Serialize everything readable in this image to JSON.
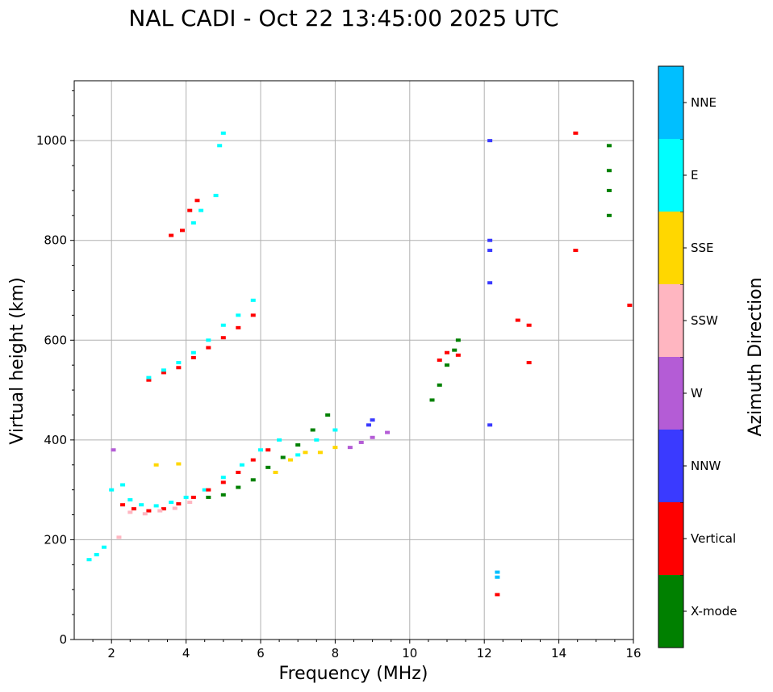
{
  "chart_data": {
    "type": "scatter",
    "title": "NAL CADI - Oct 22 13:45:00 2025 UTC",
    "xlabel": "Frequency (MHz)",
    "ylabel": "Virtual height (km)",
    "colorbar_label": "Azimuth Direction",
    "xlim": [
      1,
      16
    ],
    "ylim": [
      0,
      1120
    ],
    "xticks": [
      2,
      4,
      6,
      8,
      10,
      12,
      14,
      16
    ],
    "yticks": [
      0,
      200,
      400,
      600,
      800,
      1000
    ],
    "grid": true,
    "categories": [
      "X-mode",
      "Vertical",
      "NNW",
      "W",
      "SSW",
      "SSE",
      "E",
      "NNE"
    ],
    "colors": {
      "X-mode": "#008000",
      "Vertical": "#ff0000",
      "NNW": "#3a3aff",
      "W": "#b45cd6",
      "SSW": "#ffb6c1",
      "SSE": "#ffd700",
      "E": "#00ffff",
      "NNE": "#00bfff"
    },
    "traces": [
      {
        "name": "E",
        "points": [
          [
            1.4,
            160
          ],
          [
            1.6,
            170
          ],
          [
            1.8,
            185
          ],
          [
            2.0,
            300
          ],
          [
            2.3,
            310
          ],
          [
            2.5,
            280
          ],
          [
            2.8,
            270
          ],
          [
            3.2,
            268
          ],
          [
            3.6,
            275
          ],
          [
            4.0,
            285
          ],
          [
            4.5,
            300
          ],
          [
            5.0,
            325
          ],
          [
            5.5,
            350
          ],
          [
            6.0,
            380
          ],
          [
            6.5,
            400
          ],
          [
            7.0,
            370
          ],
          [
            7.5,
            400
          ],
          [
            8.0,
            420
          ]
        ]
      },
      {
        "name": "Vertical",
        "points": [
          [
            2.3,
            270
          ],
          [
            2.6,
            262
          ],
          [
            3.0,
            258
          ],
          [
            3.4,
            262
          ],
          [
            3.8,
            272
          ],
          [
            4.2,
            285
          ],
          [
            4.6,
            300
          ],
          [
            5.0,
            315
          ],
          [
            5.4,
            335
          ],
          [
            5.8,
            360
          ],
          [
            6.2,
            380
          ]
        ]
      },
      {
        "name": "X-mode",
        "points": [
          [
            4.6,
            285
          ],
          [
            5.0,
            290
          ],
          [
            5.4,
            305
          ],
          [
            5.8,
            320
          ],
          [
            6.2,
            345
          ],
          [
            6.6,
            365
          ],
          [
            7.0,
            390
          ],
          [
            7.4,
            420
          ],
          [
            7.8,
            450
          ]
        ]
      },
      {
        "name": "SSW",
        "points": [
          [
            2.2,
            205
          ],
          [
            2.5,
            255
          ],
          [
            2.9,
            252
          ],
          [
            3.3,
            258
          ],
          [
            3.7,
            263
          ],
          [
            4.1,
            275
          ]
        ]
      },
      {
        "name": "SSE",
        "points": [
          [
            3.2,
            350
          ],
          [
            3.8,
            352
          ],
          [
            6.4,
            335
          ],
          [
            6.8,
            360
          ],
          [
            7.2,
            375
          ],
          [
            7.6,
            375
          ],
          [
            8.0,
            385
          ]
        ]
      },
      {
        "name": "W",
        "points": [
          [
            2.05,
            380
          ],
          [
            8.4,
            385
          ],
          [
            8.7,
            395
          ],
          [
            9.0,
            405
          ],
          [
            9.4,
            415
          ]
        ]
      },
      {
        "name": "NNW",
        "points": [
          [
            8.9,
            430
          ],
          [
            9.0,
            440
          ],
          [
            12.15,
            1000
          ],
          [
            12.15,
            800
          ],
          [
            12.15,
            780
          ],
          [
            12.15,
            715
          ],
          [
            12.15,
            430
          ]
        ]
      },
      {
        "name": "Vertical",
        "points": [
          [
            3.0,
            520
          ],
          [
            3.4,
            535
          ],
          [
            3.8,
            545
          ],
          [
            4.2,
            565
          ],
          [
            4.6,
            585
          ],
          [
            5.0,
            605
          ],
          [
            5.4,
            625
          ],
          [
            5.8,
            650
          ],
          [
            14.45,
            780
          ],
          [
            14.45,
            1015
          ]
        ]
      },
      {
        "name": "E",
        "points": [
          [
            3.0,
            525
          ],
          [
            3.4,
            540
          ],
          [
            3.8,
            555
          ],
          [
            4.2,
            575
          ],
          [
            4.6,
            600
          ],
          [
            5.0,
            630
          ],
          [
            5.4,
            650
          ],
          [
            5.8,
            680
          ]
        ]
      },
      {
        "name": "Vertical",
        "points": [
          [
            3.6,
            810
          ],
          [
            3.9,
            820
          ],
          [
            4.1,
            860
          ],
          [
            4.3,
            880
          ]
        ]
      },
      {
        "name": "E",
        "points": [
          [
            4.2,
            835
          ],
          [
            4.4,
            860
          ],
          [
            4.8,
            890
          ],
          [
            4.9,
            990
          ],
          [
            5.0,
            1015
          ]
        ]
      },
      {
        "name": "X-mode",
        "points": [
          [
            10.6,
            480
          ],
          [
            10.8,
            510
          ],
          [
            11.0,
            550
          ],
          [
            11.2,
            580
          ],
          [
            11.3,
            600
          ]
        ]
      },
      {
        "name": "Vertical",
        "points": [
          [
            10.8,
            560
          ],
          [
            11.0,
            575
          ],
          [
            11.3,
            570
          ],
          [
            12.9,
            640
          ],
          [
            13.2,
            630
          ],
          [
            13.2,
            555
          ]
        ]
      },
      {
        "name": "X-mode",
        "points": [
          [
            15.35,
            850
          ],
          [
            15.35,
            900
          ],
          [
            15.35,
            940
          ],
          [
            15.35,
            990
          ]
        ]
      },
      {
        "name": "NNE",
        "points": [
          [
            12.35,
            125
          ],
          [
            12.35,
            135
          ]
        ]
      },
      {
        "name": "Vertical",
        "points": [
          [
            12.35,
            90
          ],
          [
            15.9,
            670
          ]
        ]
      }
    ]
  }
}
